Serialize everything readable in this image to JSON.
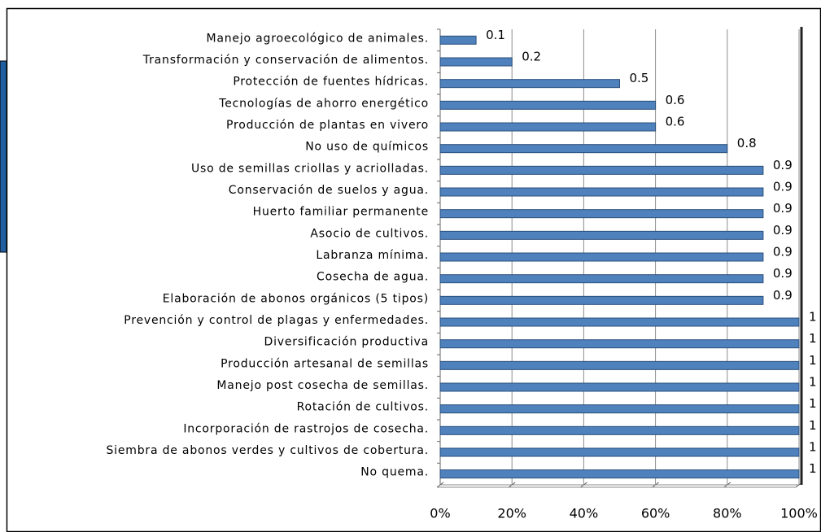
{
  "chart_data": {
    "type": "bar",
    "orientation": "horizontal",
    "categories": [
      "Manejo agroecológico de animales.",
      "Transformación y conservación de alimentos.",
      "Protección de fuentes hídricas.",
      "Tecnologías de ahorro energético",
      "Producción de plantas en vivero",
      "No uso de químicos",
      "Uso de semillas criollas y acriolladas.",
      "Conservación de suelos y agua.",
      "Huerto familiar permanente",
      "Asocio de cultivos.",
      "Labranza mínima.",
      "Cosecha de agua.",
      "Elaboración de abonos orgánicos (5 tipos)",
      "Prevención y control de plagas y enfermedades.",
      "Diversificación productiva",
      "Producción artesanal de semillas",
      "Manejo post cosecha de semillas.",
      "Rotación de cultivos.",
      "Incorporación de rastrojos de cosecha.",
      "Siembra de abonos verdes y cultivos de cobertura.",
      "No quema."
    ],
    "values": [
      0.1,
      0.2,
      0.5,
      0.6,
      0.6,
      0.8,
      0.9,
      0.9,
      0.9,
      0.9,
      0.9,
      0.9,
      0.9,
      1,
      1,
      1,
      1,
      1,
      1,
      1,
      1
    ],
    "color": "#4f81bd",
    "xlim": [
      0,
      1
    ],
    "xticks": [
      {
        "value": 0,
        "label": "0%"
      },
      {
        "value": 0.2,
        "label": "20%"
      },
      {
        "value": 0.4,
        "label": "40%"
      },
      {
        "value": 0.6,
        "label": "60%"
      },
      {
        "value": 0.8,
        "label": "80%"
      },
      {
        "value": 1,
        "label": "100%"
      }
    ],
    "grid": true
  }
}
